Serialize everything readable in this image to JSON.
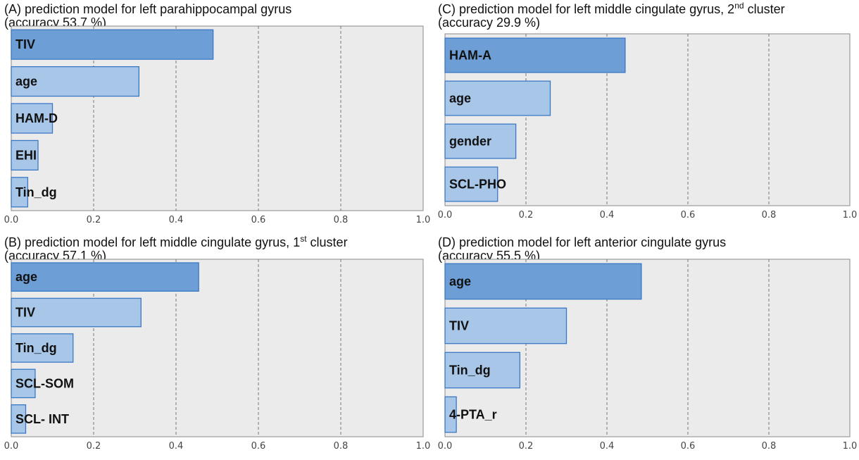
{
  "chart_data": [
    {
      "type": "bar",
      "orientation": "horizontal",
      "title_prefix": "(A) prediction model for left parahippocampal gyrus",
      "title_sup": "",
      "title_suffix": "",
      "subtitle": "(accuracy 53.7 %)",
      "categories": [
        "TIV",
        "age",
        "HAM-D",
        "EHI",
        "Tin_dg"
      ],
      "values": [
        0.49,
        0.31,
        0.1,
        0.065,
        0.04
      ],
      "xlim": [
        0,
        1.0
      ],
      "ticks": [
        "0.0",
        "0.2",
        "0.4",
        "0.6",
        "0.8",
        "1.0"
      ],
      "grid": true
    },
    {
      "type": "bar",
      "orientation": "horizontal",
      "title_prefix": "(B) prediction model for left middle cingulate gyrus, 1",
      "title_sup": "st",
      "title_suffix": " cluster",
      "subtitle": "(accuracy 57.1 %)",
      "categories": [
        "age",
        "TIV",
        "Tin_dg",
        "SCL-SOM",
        "SCL- INT"
      ],
      "values": [
        0.455,
        0.315,
        0.15,
        0.058,
        0.035
      ],
      "xlim": [
        0,
        1.0
      ],
      "ticks": [
        "0.0",
        "0.2",
        "0.4",
        "0.6",
        "0.8",
        "1.0"
      ],
      "grid": true
    },
    {
      "type": "bar",
      "orientation": "horizontal",
      "title_prefix": "(C) prediction model for left middle cingulate gyrus, 2",
      "title_sup": "nd",
      "title_suffix": " cluster",
      "subtitle": "(accuracy 29.9 %)",
      "categories": [
        "HAM-A",
        "age",
        "gender",
        "SCL-PHO"
      ],
      "values": [
        0.445,
        0.26,
        0.175,
        0.13
      ],
      "xlim": [
        0,
        1.0
      ],
      "ticks": [
        "0.0",
        "0.2",
        "0.4",
        "0.6",
        "0.8",
        "1.0"
      ],
      "grid": true
    },
    {
      "type": "bar",
      "orientation": "horizontal",
      "title_prefix": "(D) prediction model for left anterior cingulate gyrus",
      "title_sup": "",
      "title_suffix": "",
      "subtitle": "(accuracy 55.5 %)",
      "categories": [
        "age",
        "TIV",
        "Tin_dg",
        "4-PTA_r"
      ],
      "values": [
        0.485,
        0.3,
        0.185,
        0.028
      ],
      "xlim": [
        0,
        1.0
      ],
      "ticks": [
        "0.0",
        "0.2",
        "0.4",
        "0.6",
        "0.8",
        "1.0"
      ],
      "grid": true
    }
  ],
  "colors": {
    "plot_bg": "#ebebeb",
    "bar_fill_top": "#6d9fd6",
    "bar_fill": "#a8c6e8",
    "bar_stroke": "#3a78c4",
    "grid": "#777777",
    "frame": "#8a8a8a"
  }
}
